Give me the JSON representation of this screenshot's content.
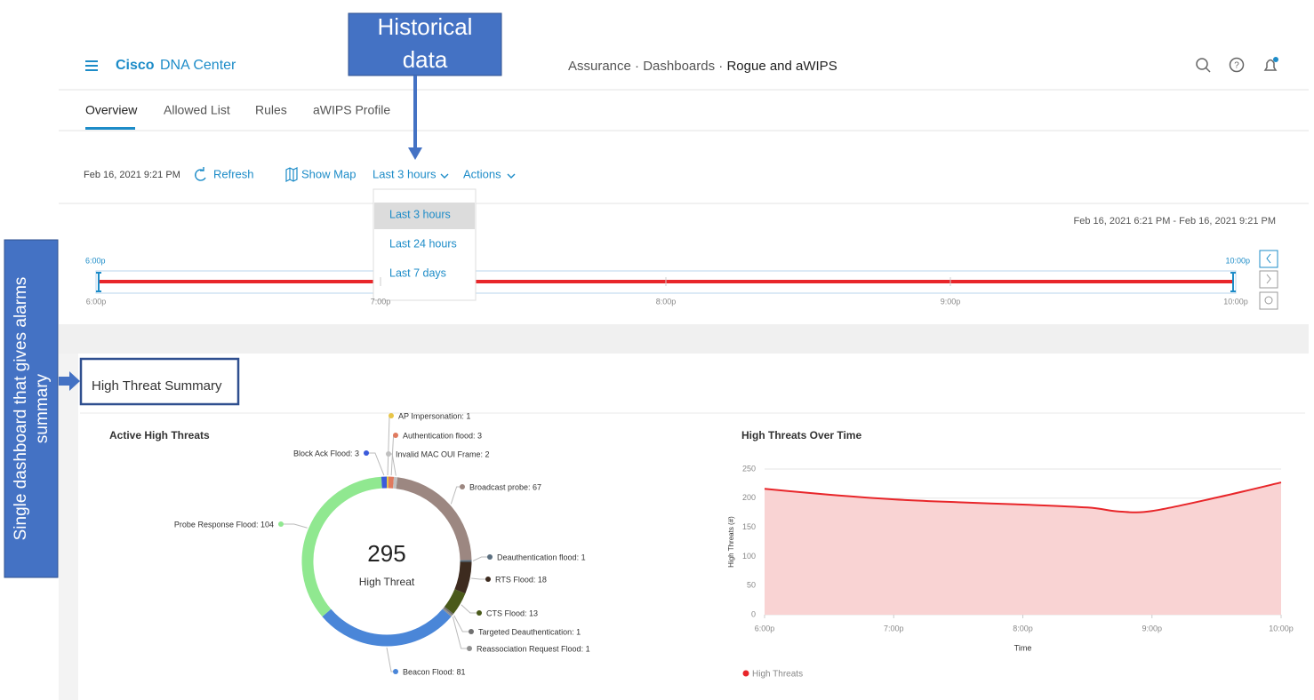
{
  "annotations": {
    "historical": [
      "Historical",
      "data"
    ],
    "dashboard": [
      "Single dashboard  that gives  alarms",
      "summary"
    ]
  },
  "header": {
    "brand": "Cisco",
    "product": "DNA Center",
    "breadcrumb": [
      "Assurance",
      "Dashboards",
      "Rogue and aWIPS"
    ],
    "breadcrumb_separator": "·"
  },
  "tabs": [
    "Overview",
    "Allowed List",
    "Rules",
    "aWIPS Profile"
  ],
  "toolbar": {
    "timestamp": "Feb 16, 2021 9:21 PM",
    "refresh": "Refresh",
    "show_map": "Show Map",
    "time_range": "Last 3 hours",
    "actions": "Actions"
  },
  "dropdown": [
    "Last 3 hours",
    "Last 24 hours",
    "Last 7 days"
  ],
  "timeline": {
    "range": "Feb 16, 2021 6:21 PM - Feb 16, 2021 9:21 PM",
    "selection": [
      "6:00p",
      "10:00p"
    ],
    "axis": [
      "6:00p",
      "7:00p",
      "8:00p",
      "9:00p",
      "10:00p"
    ]
  },
  "section_title": "High Threat Summary",
  "chart_data": [
    {
      "type": "pie",
      "donut": true,
      "title": "Active High Threats",
      "center_value": 295,
      "center_label": "High Threat",
      "values": [
        1,
        3,
        2,
        67,
        1,
        18,
        13,
        1,
        1,
        81,
        104,
        3
      ],
      "value_labels": [
        "AP Impersonation: 1",
        "Authentication flood: 3",
        "Invalid MAC OUI Frame: 2",
        "Broadcast probe: 67",
        "Deauthentication flood: 1",
        "RTS Flood: 18",
        "CTS Flood: 13",
        "Targeted Deauthentication: 1",
        "Reassociation Request Flood: 1",
        "Beacon Flood: 81",
        "Probe Response Flood: 104",
        "Block Ack Flood: 3"
      ],
      "colors": [
        "#e8c547",
        "#e07a5f",
        "#c0c0c0",
        "#9c8781",
        "#5b6f7f",
        "#3d2b1f",
        "#4a5a1a",
        "#707070",
        "#909090",
        "#4a86d8",
        "#90e890",
        "#3b5bdb"
      ]
    },
    {
      "type": "area",
      "title": "High Threats Over Time",
      "x_label": "Time",
      "y_label": "High Threats (#)",
      "x": [
        18,
        18.5,
        19,
        19.5,
        20,
        20.5,
        20.75,
        21,
        21.5,
        22
      ],
      "series": [
        {
          "name": "High Threats",
          "color": "#e8262a",
          "values": [
            216,
            206,
            198,
            193,
            189,
            184,
            177,
            178,
            201,
            227
          ]
        }
      ],
      "fill_color": "#f9d3d3",
      "xlim": [
        18,
        22
      ],
      "xticks": [
        {
          "value": 18,
          "label": "6:00p"
        },
        {
          "value": 19,
          "label": "7:00p"
        },
        {
          "value": 20,
          "label": "8:00p"
        },
        {
          "value": 21,
          "label": "9:00p"
        },
        {
          "value": 22,
          "label": "10:00p"
        }
      ],
      "ylim": [
        0,
        250
      ],
      "yticks": [
        0,
        50,
        100,
        150,
        200,
        250
      ],
      "grid": true
    }
  ]
}
